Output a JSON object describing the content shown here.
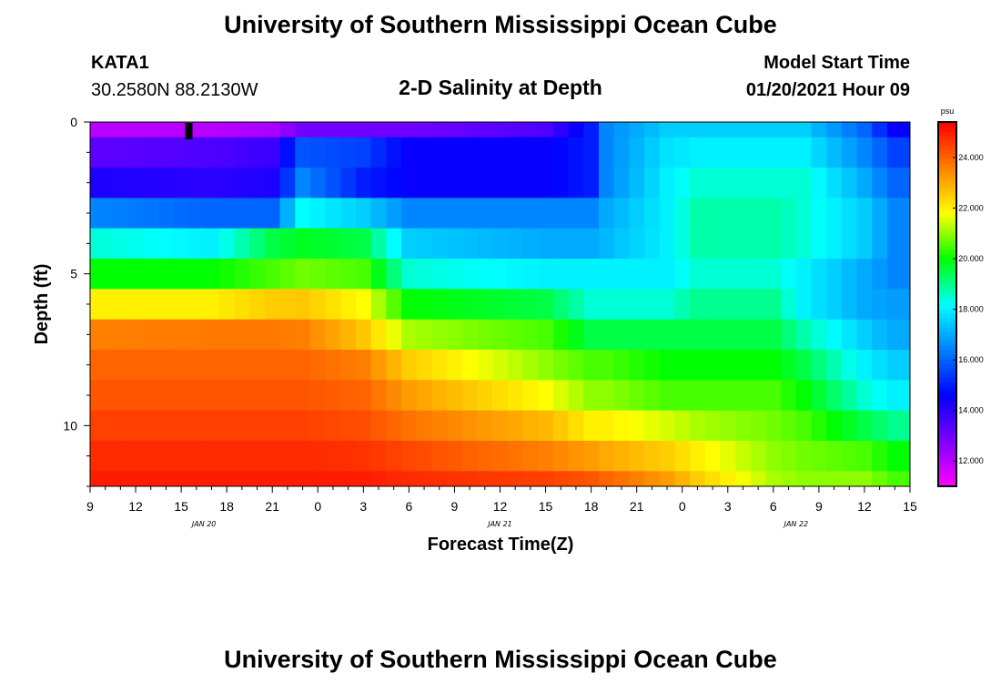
{
  "header": {
    "title": "University of Southern Mississippi Ocean Cube",
    "station_id": "KATA1",
    "station_coords": "30.2580N 88.2130W",
    "plot_title": "2-D Salinity at Depth",
    "model_start_label": "Model Start Time",
    "model_start_value": "01/20/2021 Hour 09"
  },
  "footer": {
    "title": "University of Southern Mississippi Ocean Cube"
  },
  "colors": {
    "colormap": [
      "#ff00ff",
      "#8000ff",
      "#0000ff",
      "#0080ff",
      "#00ffff",
      "#00ff00",
      "#ffff00",
      "#ff8000",
      "#ff0000"
    ]
  },
  "chart_data": {
    "type": "heatmap",
    "title": "2-D Salinity at Depth",
    "xlabel": "Forecast Time(Z)",
    "ylabel": "Depth (ft)",
    "xlim": [
      0,
      54
    ],
    "ylim": [
      0,
      12
    ],
    "y_inverted": true,
    "x_hours": [
      0,
      1,
      2,
      3,
      4,
      5,
      6,
      7,
      8,
      9,
      10,
      11,
      12,
      13,
      14,
      15,
      16,
      17,
      18,
      19,
      20,
      21,
      22,
      23,
      24,
      25,
      26,
      27,
      28,
      29,
      30,
      31,
      32,
      33,
      34,
      35,
      36,
      37,
      38,
      39,
      40,
      41,
      42,
      43,
      44,
      45,
      46,
      47,
      48,
      49,
      50,
      51,
      52,
      53,
      54
    ],
    "depths": [
      0,
      1,
      2,
      3,
      4,
      5,
      6,
      7,
      8,
      9,
      10,
      11,
      12
    ],
    "x_ticks": [
      {
        "hour": 0,
        "label": "9"
      },
      {
        "hour": 3,
        "label": "12"
      },
      {
        "hour": 6,
        "label": "15"
      },
      {
        "hour": 9,
        "label": "18"
      },
      {
        "hour": 12,
        "label": "21"
      },
      {
        "hour": 15,
        "label": "0"
      },
      {
        "hour": 18,
        "label": "3"
      },
      {
        "hour": 21,
        "label": "6"
      },
      {
        "hour": 24,
        "label": "9"
      },
      {
        "hour": 27,
        "label": "12"
      },
      {
        "hour": 30,
        "label": "15"
      },
      {
        "hour": 33,
        "label": "18"
      },
      {
        "hour": 36,
        "label": "21"
      },
      {
        "hour": 39,
        "label": "0"
      },
      {
        "hour": 42,
        "label": "3"
      },
      {
        "hour": 45,
        "label": "6"
      },
      {
        "hour": 48,
        "label": "9"
      },
      {
        "hour": 51,
        "label": "12"
      },
      {
        "hour": 54,
        "label": "15"
      }
    ],
    "date_labels": [
      {
        "hour": 7.5,
        "label": "JAN 20"
      },
      {
        "hour": 27,
        "label": "JAN 21"
      },
      {
        "hour": 46.5,
        "label": "JAN 22"
      }
    ],
    "y_ticks": [
      {
        "depth": 0,
        "label": "0"
      },
      {
        "depth": 5,
        "label": "5"
      },
      {
        "depth": 10,
        "label": "10"
      }
    ],
    "colorbar": {
      "unit": "psu",
      "min": 11.0,
      "max": 25.4,
      "ticks": [
        "12.000",
        "14.000",
        "16.000",
        "18.000",
        "20.000",
        "22.000",
        "24.000"
      ],
      "tick_values": [
        12,
        14,
        16,
        18,
        20,
        22,
        24
      ]
    },
    "profiles": [
      {
        "hour": 0,
        "values": [
          12.0,
          13.3,
          14.2,
          16.5,
          18.5,
          20.0,
          22.0,
          23.6,
          24.0,
          24.2,
          24.5,
          24.8,
          25.0
        ]
      },
      {
        "hour": 8,
        "values": [
          12.0,
          13.5,
          14.0,
          16.0,
          18.0,
          20.0,
          22.0,
          23.7,
          24.0,
          24.2,
          24.5,
          24.8,
          25.0
        ]
      },
      {
        "hour": 12,
        "values": [
          12.2,
          13.8,
          14.2,
          16.0,
          19.5,
          20.5,
          22.5,
          23.7,
          24.0,
          24.2,
          24.5,
          24.8,
          25.0
        ]
      },
      {
        "hour": 14,
        "values": [
          13.0,
          15.8,
          16.5,
          18.2,
          19.8,
          20.8,
          22.6,
          23.6,
          24.0,
          24.2,
          24.5,
          24.8,
          25.0
        ]
      },
      {
        "hour": 18,
        "values": [
          13.0,
          15.5,
          15.0,
          17.5,
          19.5,
          20.5,
          21.8,
          22.6,
          23.6,
          24.0,
          24.3,
          24.7,
          25.0
        ]
      },
      {
        "hour": 21,
        "values": [
          13.0,
          14.5,
          14.5,
          16.5,
          17.5,
          18.5,
          20.0,
          21.2,
          22.5,
          23.2,
          23.8,
          24.4,
          24.8
        ]
      },
      {
        "hour": 30,
        "values": [
          13.5,
          14.5,
          14.5,
          16.5,
          17.0,
          18.0,
          19.5,
          20.5,
          21.0,
          21.8,
          22.8,
          23.6,
          24.5
        ]
      },
      {
        "hour": 33,
        "values": [
          15.0,
          15.0,
          15.0,
          16.5,
          17.0,
          18.0,
          18.5,
          19.5,
          20.5,
          21.0,
          22.0,
          23.2,
          24.2
        ]
      },
      {
        "hour": 34,
        "values": [
          16.5,
          16.5,
          16.5,
          17.0,
          17.2,
          18.0,
          18.5,
          19.5,
          20.5,
          21.0,
          22.0,
          23.0,
          24.0
        ]
      },
      {
        "hour": 38,
        "values": [
          17.5,
          17.8,
          18.0,
          18.0,
          18.0,
          18.0,
          18.5,
          19.5,
          20.0,
          20.5,
          21.5,
          22.5,
          23.2
        ]
      },
      {
        "hour": 40,
        "values": [
          17.5,
          18.0,
          18.5,
          18.8,
          18.8,
          18.5,
          19.0,
          19.5,
          20.0,
          20.5,
          21.2,
          22.0,
          22.5
        ]
      },
      {
        "hour": 45,
        "values": [
          17.5,
          18.0,
          18.5,
          18.8,
          18.8,
          18.5,
          19.0,
          19.5,
          20.0,
          20.5,
          20.8,
          21.0,
          21.2
        ]
      },
      {
        "hour": 47,
        "values": [
          17.5,
          18.0,
          18.5,
          18.5,
          18.5,
          18.0,
          18.0,
          18.8,
          19.5,
          20.0,
          20.5,
          20.8,
          21.0
        ]
      },
      {
        "hour": 51,
        "values": [
          16.0,
          16.5,
          17.0,
          17.5,
          17.5,
          17.0,
          17.0,
          17.5,
          18.0,
          18.5,
          19.5,
          20.5,
          21.0
        ]
      },
      {
        "hour": 53,
        "values": [
          14.5,
          15.5,
          16.0,
          16.5,
          16.5,
          16.5,
          16.8,
          17.0,
          17.5,
          18.0,
          19.0,
          20.0,
          20.5
        ]
      },
      {
        "hour": 54,
        "values": [
          14.5,
          15.5,
          16.0,
          16.5,
          16.5,
          16.5,
          16.8,
          17.0,
          17.5,
          18.0,
          19.0,
          20.0,
          20.5
        ]
      }
    ],
    "marker": {
      "hour": 6.5,
      "depth": 0.3
    }
  }
}
